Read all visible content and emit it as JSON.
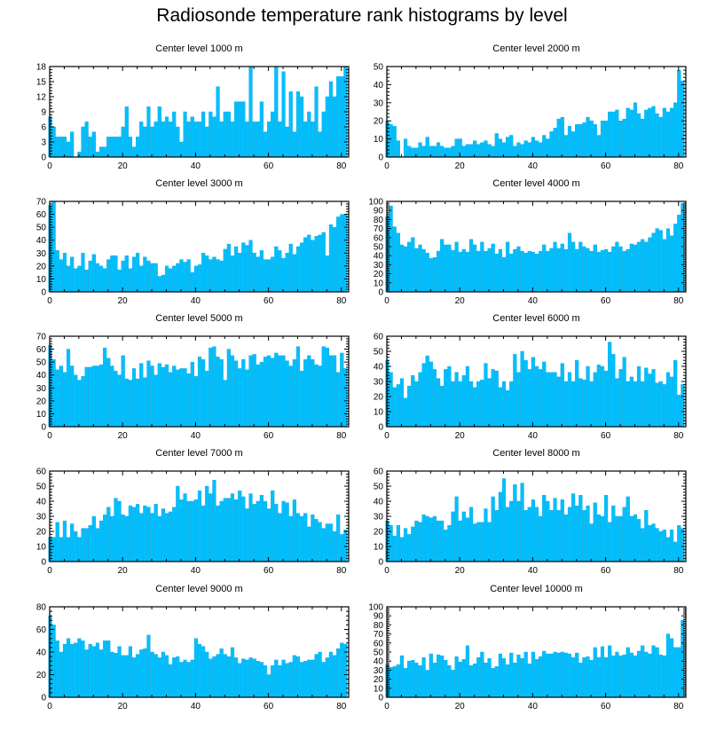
{
  "figure_title": "Radiosonde temperature rank histograms by level",
  "chart_data": [
    {
      "type": "bar",
      "title": "Center level 1000 m",
      "xlabel": "",
      "ylabel": "",
      "xlim": [
        0,
        82
      ],
      "ylim": [
        0,
        18
      ],
      "xticks": [
        0,
        20,
        40,
        60,
        80
      ],
      "yticks": [
        0,
        3,
        6,
        9,
        12,
        15,
        18
      ],
      "x_start": 0,
      "values": [
        8,
        6,
        4,
        4,
        4,
        3,
        5,
        0,
        1,
        6,
        7,
        4,
        5,
        1,
        2,
        2,
        4,
        4,
        4,
        4,
        6,
        10,
        4,
        2,
        4,
        7,
        6,
        10,
        6,
        7,
        10,
        7,
        8,
        7,
        9,
        6,
        3,
        9,
        7,
        8,
        7,
        7,
        9,
        6,
        9,
        8,
        14,
        7,
        9,
        9,
        7,
        11,
        11,
        11,
        7,
        18,
        7,
        7,
        11,
        5,
        7,
        9,
        18,
        7,
        17,
        6,
        13,
        5,
        13,
        12,
        7,
        9,
        7,
        14,
        5,
        9,
        12,
        15,
        12,
        16,
        16,
        18
      ]
    },
    {
      "type": "bar",
      "title": "Center level 2000 m",
      "xlabel": "",
      "ylabel": "",
      "xlim": [
        0,
        82
      ],
      "ylim": [
        0,
        50
      ],
      "xticks": [
        0,
        20,
        40,
        60,
        80
      ],
      "yticks": [
        0,
        10,
        20,
        30,
        40,
        50
      ],
      "x_start": 0,
      "values": [
        20,
        18,
        17,
        9,
        0,
        10,
        6,
        5,
        5,
        8,
        6,
        11,
        6,
        6,
        8,
        6,
        5,
        5,
        6,
        10,
        10,
        6,
        7,
        7,
        9,
        7,
        8,
        9,
        7,
        6,
        13,
        10,
        8,
        11,
        12,
        6,
        8,
        7,
        9,
        8,
        11,
        9,
        8,
        12,
        10,
        14,
        16,
        21,
        22,
        12,
        17,
        14,
        18,
        18,
        19,
        22,
        20,
        18,
        12,
        20,
        20,
        25,
        25,
        26,
        20,
        21,
        27,
        26,
        30,
        24,
        21,
        26,
        27,
        28,
        24,
        22,
        27,
        25,
        27,
        30,
        48,
        42
      ]
    },
    {
      "type": "bar",
      "title": "Center level 3000 m",
      "xlabel": "",
      "ylabel": "",
      "xlim": [
        0,
        82
      ],
      "ylim": [
        0,
        70
      ],
      "xticks": [
        0,
        20,
        40,
        60,
        80
      ],
      "yticks": [
        0,
        10,
        20,
        30,
        40,
        50,
        60,
        70
      ],
      "x_start": 0,
      "values": [
        67,
        70,
        32,
        25,
        30,
        20,
        27,
        18,
        20,
        30,
        17,
        24,
        29,
        22,
        20,
        18,
        25,
        28,
        28,
        17,
        24,
        28,
        18,
        27,
        30,
        20,
        27,
        24,
        22,
        22,
        12,
        13,
        20,
        18,
        20,
        22,
        25,
        23,
        25,
        15,
        20,
        21,
        30,
        28,
        25,
        27,
        25,
        24,
        33,
        37,
        28,
        35,
        30,
        38,
        36,
        40,
        30,
        27,
        32,
        25,
        25,
        27,
        35,
        32,
        26,
        30,
        37,
        29,
        35,
        38,
        42,
        44,
        40,
        43,
        44,
        46,
        28,
        52,
        50,
        58,
        60,
        60
      ]
    },
    {
      "type": "bar",
      "title": "Center level 4000 m",
      "xlabel": "",
      "ylabel": "",
      "xlim": [
        0,
        82
      ],
      "ylim": [
        0,
        100
      ],
      "xticks": [
        0,
        20,
        40,
        60,
        80
      ],
      "yticks": [
        0,
        10,
        20,
        30,
        40,
        50,
        60,
        70,
        80,
        90,
        100
      ],
      "x_start": 0,
      "values": [
        83,
        95,
        72,
        65,
        52,
        50,
        55,
        60,
        48,
        52,
        47,
        43,
        37,
        38,
        45,
        58,
        52,
        52,
        46,
        55,
        44,
        47,
        44,
        58,
        52,
        45,
        55,
        45,
        48,
        53,
        42,
        47,
        38,
        55,
        42,
        47,
        50,
        45,
        43,
        45,
        44,
        42,
        45,
        52,
        45,
        48,
        55,
        48,
        53,
        47,
        65,
        55,
        47,
        55,
        50,
        48,
        45,
        52,
        44,
        46,
        47,
        44,
        50,
        55,
        50,
        45,
        47,
        53,
        52,
        55,
        58,
        55,
        60,
        65,
        70,
        68,
        58,
        70,
        62,
        75,
        85,
        98
      ]
    },
    {
      "type": "bar",
      "title": "Center level 5000 m",
      "xlabel": "",
      "ylabel": "",
      "xlim": [
        0,
        82
      ],
      "ylim": [
        0,
        70
      ],
      "xticks": [
        0,
        20,
        40,
        60,
        80
      ],
      "yticks": [
        0,
        10,
        20,
        30,
        40,
        50,
        60,
        70
      ],
      "x_start": 0,
      "values": [
        63,
        52,
        44,
        47,
        42,
        60,
        47,
        40,
        36,
        39,
        46,
        46,
        47,
        47,
        48,
        61,
        53,
        47,
        43,
        40,
        55,
        37,
        36,
        45,
        37,
        49,
        38,
        51,
        47,
        40,
        49,
        46,
        48,
        42,
        47,
        44,
        45,
        45,
        41,
        50,
        39,
        54,
        52,
        43,
        61,
        62,
        54,
        52,
        36,
        60,
        55,
        51,
        45,
        52,
        44,
        55,
        56,
        48,
        50,
        54,
        55,
        53,
        57,
        55,
        55,
        51,
        47,
        52,
        62,
        43,
        52,
        55,
        52,
        48,
        47,
        62,
        61,
        55,
        55,
        42,
        57,
        45
      ]
    },
    {
      "type": "bar",
      "title": "Center level 6000 m",
      "xlabel": "",
      "ylabel": "",
      "xlim": [
        0,
        82
      ],
      "ylim": [
        0,
        60
      ],
      "xticks": [
        0,
        20,
        40,
        60,
        80
      ],
      "yticks": [
        0,
        10,
        20,
        30,
        40,
        50,
        60
      ],
      "x_start": 0,
      "values": [
        44,
        36,
        26,
        28,
        32,
        19,
        27,
        34,
        30,
        36,
        42,
        47,
        43,
        38,
        32,
        27,
        38,
        40,
        30,
        36,
        30,
        34,
        40,
        30,
        26,
        30,
        31,
        42,
        32,
        38,
        37,
        26,
        30,
        24,
        30,
        48,
        36,
        50,
        44,
        38,
        46,
        40,
        38,
        43,
        36,
        36,
        36,
        33,
        42,
        30,
        36,
        30,
        44,
        32,
        31,
        40,
        30,
        36,
        41,
        40,
        37,
        56,
        48,
        32,
        38,
        46,
        30,
        33,
        30,
        40,
        30,
        39,
        35,
        38,
        29,
        30,
        28,
        36,
        33,
        44,
        21,
        28
      ]
    },
    {
      "type": "bar",
      "title": "Center level 7000 m",
      "xlabel": "",
      "ylabel": "",
      "xlim": [
        0,
        82
      ],
      "ylim": [
        0,
        60
      ],
      "xticks": [
        0,
        20,
        40,
        60,
        80
      ],
      "yticks": [
        0,
        10,
        20,
        30,
        40,
        50,
        60
      ],
      "x_start": 0,
      "values": [
        16,
        16,
        26,
        16,
        27,
        16,
        25,
        20,
        16,
        22,
        22,
        24,
        30,
        22,
        27,
        31,
        36,
        30,
        42,
        40,
        31,
        30,
        37,
        36,
        38,
        32,
        37,
        36,
        32,
        38,
        30,
        35,
        32,
        33,
        36,
        50,
        41,
        45,
        40,
        40,
        41,
        47,
        37,
        50,
        45,
        54,
        37,
        40,
        42,
        42,
        45,
        41,
        47,
        43,
        35,
        45,
        38,
        40,
        44,
        40,
        35,
        47,
        38,
        32,
        40,
        39,
        30,
        41,
        32,
        30,
        32,
        23,
        31,
        28,
        26,
        22,
        25,
        25,
        20,
        31,
        18,
        21
      ]
    },
    {
      "type": "bar",
      "title": "Center level 8000 m",
      "xlabel": "",
      "ylabel": "",
      "xlim": [
        0,
        82
      ],
      "ylim": [
        0,
        60
      ],
      "xticks": [
        0,
        20,
        40,
        60,
        80
      ],
      "yticks": [
        0,
        10,
        20,
        30,
        40,
        50,
        60
      ],
      "x_start": 0,
      "values": [
        27,
        24,
        17,
        24,
        16,
        22,
        18,
        23,
        27,
        26,
        31,
        30,
        29,
        30,
        27,
        27,
        21,
        24,
        33,
        43,
        27,
        33,
        29,
        36,
        25,
        26,
        26,
        35,
        26,
        43,
        34,
        46,
        55,
        36,
        40,
        51,
        40,
        52,
        34,
        36,
        41,
        36,
        30,
        44,
        40,
        34,
        42,
        34,
        41,
        31,
        36,
        45,
        37,
        44,
        34,
        37,
        25,
        39,
        31,
        30,
        44,
        26,
        37,
        30,
        30,
        36,
        43,
        30,
        31,
        28,
        22,
        34,
        24,
        25,
        22,
        20,
        21,
        16,
        21,
        13,
        24,
        22
      ]
    },
    {
      "type": "bar",
      "title": "Center level 9000 m",
      "xlabel": "",
      "ylabel": "",
      "xlim": [
        0,
        82
      ],
      "ylim": [
        0,
        80
      ],
      "xticks": [
        0,
        20,
        40,
        60,
        80
      ],
      "yticks": [
        0,
        20,
        40,
        60,
        80
      ],
      "x_start": 0,
      "values": [
        72,
        64,
        50,
        40,
        47,
        52,
        47,
        48,
        52,
        50,
        42,
        47,
        45,
        48,
        42,
        50,
        50,
        40,
        39,
        45,
        37,
        37,
        45,
        35,
        38,
        42,
        43,
        55,
        40,
        38,
        35,
        40,
        37,
        29,
        35,
        36,
        31,
        33,
        31,
        33,
        52,
        47,
        45,
        40,
        34,
        36,
        38,
        43,
        38,
        36,
        44,
        35,
        30,
        34,
        33,
        35,
        34,
        32,
        31,
        28,
        20,
        28,
        33,
        28,
        33,
        30,
        31,
        37,
        36,
        31,
        32,
        33,
        33,
        38,
        40,
        31,
        35,
        40,
        37,
        43,
        48,
        47
      ]
    },
    {
      "type": "bar",
      "title": "Center level 10000 m",
      "xlabel": "",
      "ylabel": "",
      "xlim": [
        0,
        82
      ],
      "ylim": [
        0,
        100
      ],
      "xticks": [
        0,
        20,
        40,
        60,
        80
      ],
      "yticks": [
        0,
        10,
        20,
        30,
        40,
        50,
        60,
        70,
        80,
        90,
        100
      ],
      "x_start": 0,
      "values": [
        36,
        33,
        34,
        36,
        46,
        32,
        40,
        41,
        38,
        35,
        44,
        30,
        48,
        38,
        47,
        46,
        41,
        35,
        30,
        45,
        39,
        42,
        57,
        35,
        37,
        44,
        50,
        38,
        43,
        32,
        34,
        48,
        43,
        36,
        49,
        38,
        47,
        43,
        50,
        37,
        50,
        42,
        45,
        51,
        48,
        48,
        50,
        49,
        50,
        49,
        48,
        44,
        49,
        38,
        44,
        45,
        41,
        55,
        44,
        56,
        44,
        57,
        46,
        50,
        46,
        47,
        55,
        49,
        46,
        51,
        57,
        50,
        48,
        57,
        55,
        47,
        46,
        70,
        65,
        55,
        55,
        85
      ]
    }
  ]
}
